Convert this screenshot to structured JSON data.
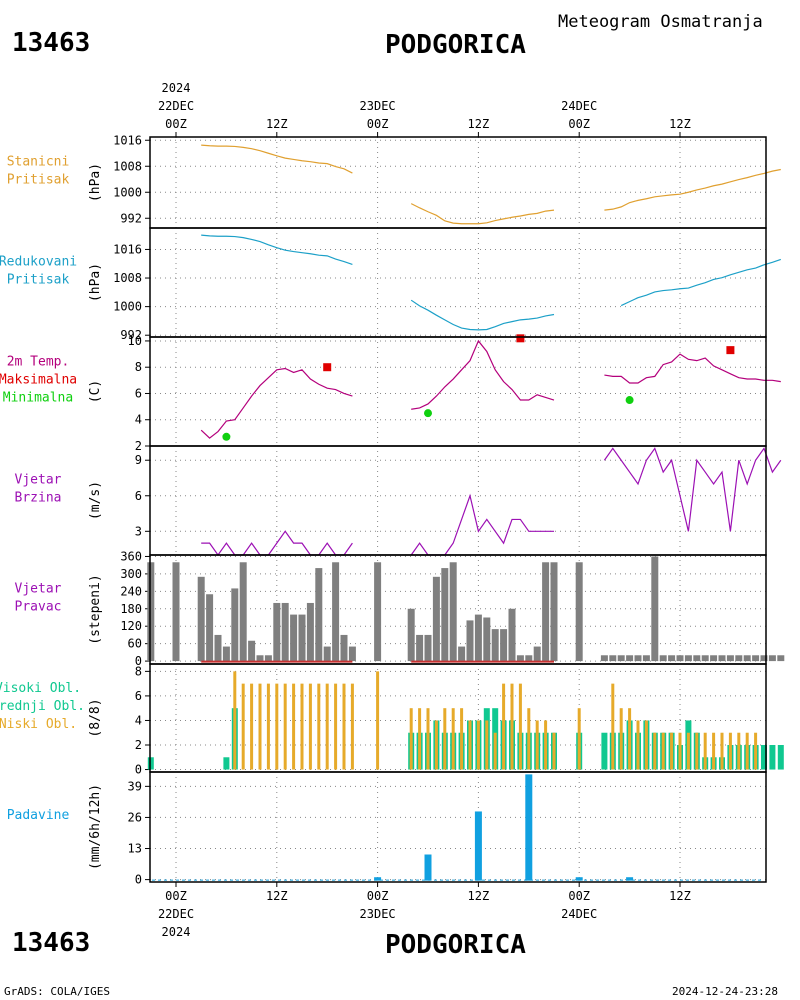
{
  "header": {
    "station_id": "13463",
    "station_name": "PODGORICA",
    "subtitle": "Meteogram Osmatranja",
    "footer_left": "GrADS: COLA/IGES",
    "footer_right": "2024-12-24-23:28"
  },
  "time_axis": {
    "hours_total": 60,
    "top_year": "2024",
    "ticks": [
      {
        "h": 0,
        "label": "00Z",
        "date": "22DEC"
      },
      {
        "h": 12,
        "label": "12Z",
        "date": ""
      },
      {
        "h": 24,
        "label": "00Z",
        "date": "23DEC"
      },
      {
        "h": 36,
        "label": "12Z",
        "date": ""
      },
      {
        "h": 48,
        "label": "00Z",
        "date": "24DEC"
      },
      {
        "h": 60,
        "label": "12Z",
        "date": ""
      }
    ],
    "bottom_year": "2024"
  },
  "colors": {
    "station_pressure": "#e0a030",
    "reduced_pressure": "#1ca0c8",
    "temperature": "#b4007c",
    "max_marker": "#e00000",
    "min_marker": "#10d010",
    "wind": "#9c10b4",
    "direction_bar": "#7f7f7f",
    "direction_dash": "#c83232",
    "high_cloud": "#10c890",
    "low_cloud": "#e6aa2a",
    "precip": "#10a0e0",
    "grid": "#888888"
  },
  "chart_data": [
    {
      "panel": "station_pressure",
      "type": "line",
      "labels": [
        "Stanicni",
        "Pritisak"
      ],
      "ylabel": "(hPa)",
      "yticks": [
        992,
        1000,
        1008,
        1016
      ],
      "ylim": [
        989,
        1017
      ],
      "series": [
        {
          "x": [
            3,
            4,
            5,
            6,
            7,
            8,
            9,
            10,
            11,
            12,
            13,
            14,
            15,
            16,
            17,
            18,
            19,
            20,
            21
          ],
          "y": [
            1014.5,
            1014.3,
            1014.2,
            1014.2,
            1014.1,
            1013.8,
            1013.4,
            1012.8,
            1012.0,
            1011.2,
            1010.5,
            1010.1,
            1009.7,
            1009.4,
            1009.0,
            1008.8,
            1007.9,
            1007.2,
            1005.9
          ]
        },
        {
          "x": [
            28,
            29,
            30,
            31,
            32,
            33,
            34,
            35,
            36,
            37,
            38,
            39,
            40,
            41,
            42,
            43,
            44,
            45
          ],
          "y": [
            996.5,
            995.2,
            994.0,
            992.9,
            991.2,
            990.5,
            990.3,
            990.3,
            990.3,
            990.6,
            991.3,
            991.8,
            992.3,
            992.7,
            993.2,
            993.5,
            994.2,
            994.5
          ]
        },
        {
          "x": [
            51,
            52,
            53,
            54,
            55,
            56,
            57,
            58,
            59,
            60,
            61,
            62,
            63,
            64,
            65,
            66,
            67,
            68,
            69,
            70,
            71,
            72
          ],
          "y": [
            994.5,
            994.8,
            995.5,
            996.8,
            997.5,
            998.0,
            998.6,
            998.9,
            999.2,
            999.4,
            1000.0,
            1000.7,
            1001.3,
            1002.0,
            1002.5,
            1003.2,
            1003.9,
            1004.5,
            1005.2,
            1005.8,
            1006.5,
            1007.0
          ]
        }
      ]
    },
    {
      "panel": "reduced_pressure",
      "type": "line",
      "labels": [
        "Redukovani",
        "Pritisak"
      ],
      "ylabel": "(hPa)",
      "yticks": [
        992,
        1000,
        1008,
        1016
      ],
      "ylim": [
        991.5,
        1022
      ],
      "series": [
        {
          "x": [
            3,
            4,
            5,
            6,
            7,
            8,
            9,
            10,
            11,
            12,
            13,
            14,
            15,
            16,
            17,
            18,
            19,
            20,
            21
          ],
          "y": [
            1020.0,
            1019.8,
            1019.7,
            1019.7,
            1019.6,
            1019.3,
            1018.8,
            1018.2,
            1017.3,
            1016.5,
            1015.8,
            1015.4,
            1015.1,
            1014.8,
            1014.4,
            1014.2,
            1013.3,
            1012.6,
            1011.8
          ]
        },
        {
          "x": [
            28,
            29,
            30,
            31,
            32,
            33,
            34,
            35,
            36,
            37,
            38,
            39,
            40,
            41,
            42,
            43,
            44,
            45
          ],
          "y": [
            1001.8,
            1000.2,
            999.0,
            997.6,
            996.3,
            995.0,
            994.0,
            993.6,
            993.5,
            993.6,
            994.4,
            995.3,
            995.8,
            996.3,
            996.5,
            996.8,
            997.4,
            997.8
          ]
        },
        {
          "x": [
            53,
            54,
            55,
            56,
            57,
            58,
            59,
            60,
            61,
            62,
            63,
            64,
            65,
            66,
            67,
            68,
            69,
            70,
            71,
            72
          ],
          "y": [
            1000.3,
            1001.4,
            1002.5,
            1003.2,
            1004.1,
            1004.5,
            1004.7,
            1005.0,
            1005.2,
            1006.0,
            1006.7,
            1007.6,
            1008.1,
            1008.9,
            1009.6,
            1010.3,
            1010.8,
            1011.7,
            1012.4,
            1013.2
          ]
        }
      ]
    },
    {
      "panel": "temperature",
      "type": "line",
      "labels": [
        "2m Temp.",
        "Maksimalna",
        "Minimalna"
      ],
      "ylabel": "(C)",
      "yticks": [
        2,
        4,
        6,
        8,
        10
      ],
      "ylim": [
        2,
        10.3
      ],
      "series": [
        {
          "x": [
            3,
            4,
            5,
            6,
            7,
            8,
            9,
            10,
            11,
            12,
            13,
            14,
            15,
            16,
            17,
            18,
            19,
            20,
            21
          ],
          "y": [
            3.2,
            2.6,
            3.1,
            3.9,
            4.0,
            4.9,
            5.8,
            6.6,
            7.2,
            7.8,
            7.9,
            7.6,
            7.8,
            7.1,
            6.7,
            6.4,
            6.3,
            6.0,
            5.8
          ]
        },
        {
          "x": [
            28,
            29,
            30,
            31,
            32,
            33,
            34,
            35,
            36,
            37,
            38,
            39,
            40,
            41,
            42,
            43,
            44,
            45
          ],
          "y": [
            4.8,
            4.9,
            5.2,
            5.8,
            6.5,
            7.1,
            7.8,
            8.5,
            10.0,
            9.2,
            7.8,
            6.9,
            6.3,
            5.5,
            5.5,
            5.9,
            5.7,
            5.5
          ]
        },
        {
          "x": [
            51,
            52,
            53,
            54,
            55,
            56,
            57,
            58,
            59,
            60,
            61,
            62,
            63,
            64,
            65,
            66,
            67,
            68,
            69,
            70,
            71,
            72
          ],
          "y": [
            7.4,
            7.3,
            7.3,
            6.8,
            6.8,
            7.2,
            7.3,
            8.2,
            8.4,
            9.0,
            8.6,
            8.5,
            8.7,
            8.1,
            7.8,
            7.5,
            7.2,
            7.1,
            7.1,
            7.0,
            7.0,
            6.9
          ]
        }
      ],
      "maxima": [
        {
          "x": 18,
          "y": 8.0
        },
        {
          "x": 41,
          "y": 10.2
        },
        {
          "x": 66,
          "y": 9.3
        }
      ],
      "minima": [
        {
          "x": 6,
          "y": 2.7
        },
        {
          "x": 30,
          "y": 4.5
        },
        {
          "x": 54,
          "y": 5.5
        }
      ]
    },
    {
      "panel": "wind_speed",
      "type": "line",
      "labels": [
        "Vjetar",
        "Brzina"
      ],
      "ylabel": "(m/s)",
      "yticks": [
        3,
        6,
        9
      ],
      "ylim": [
        1,
        10.2
      ],
      "series": [
        {
          "x": [
            3,
            4,
            5,
            6,
            7,
            8,
            9,
            10,
            11,
            12,
            13,
            14,
            15,
            16,
            17,
            18,
            19,
            20,
            21
          ],
          "y": [
            2,
            2,
            1,
            2,
            1,
            1,
            2,
            1,
            1,
            2,
            3,
            2,
            2,
            1,
            1,
            2,
            1,
            1,
            2
          ]
        },
        {
          "x": [
            28,
            29,
            30,
            31,
            32,
            33,
            34,
            35,
            36,
            37,
            38,
            39,
            40,
            41,
            42,
            43,
            44,
            45
          ],
          "y": [
            1,
            2,
            1,
            1,
            1,
            2,
            4,
            6,
            3,
            4,
            3,
            2,
            4,
            4,
            3,
            3,
            3,
            3
          ]
        },
        {
          "x": [
            51,
            52,
            53,
            54,
            55,
            56,
            57,
            58,
            59,
            60,
            61,
            62,
            63,
            64,
            65,
            66,
            67,
            68,
            69,
            70,
            71,
            72
          ],
          "y": [
            9,
            10,
            9,
            8,
            7,
            9,
            10,
            8,
            9,
            6,
            3,
            9,
            8,
            7,
            8,
            3,
            9,
            7,
            9,
            10,
            8,
            9
          ]
        }
      ]
    },
    {
      "panel": "wind_direction",
      "type": "bar",
      "labels": [
        "Vjetar",
        "Pravac"
      ],
      "ylabel": "(stepeni)",
      "yticks": [
        0,
        60,
        120,
        180,
        240,
        300,
        360
      ],
      "ylim": [
        -10,
        365
      ],
      "calm_dash_ranges": [
        [
          3,
          21
        ],
        [
          28,
          45
        ]
      ],
      "series": [
        {
          "x": [
            -3,
            0,
            3,
            4,
            5,
            6,
            7,
            8,
            9,
            10,
            11,
            12,
            13,
            14,
            15,
            16,
            17,
            18,
            19,
            20,
            21,
            24,
            28,
            29,
            30,
            31,
            32,
            33,
            34,
            35,
            36,
            37,
            38,
            39,
            40,
            41,
            42,
            43,
            44,
            45,
            48,
            51,
            52,
            53,
            54,
            55,
            56,
            57,
            58,
            59,
            60,
            61,
            62,
            63,
            64,
            65,
            66,
            67,
            68,
            69,
            70,
            71,
            72
          ],
          "y": [
            340,
            340,
            290,
            230,
            90,
            50,
            250,
            340,
            70,
            20,
            20,
            200,
            200,
            160,
            160,
            200,
            320,
            50,
            340,
            90,
            50,
            340,
            180,
            90,
            90,
            290,
            320,
            340,
            50,
            140,
            160,
            150,
            110,
            110,
            180,
            20,
            20,
            50,
            340,
            340,
            340,
            20,
            20,
            20,
            20,
            20,
            20,
            360,
            20,
            20,
            20,
            20,
            20,
            20,
            20,
            20,
            20,
            20,
            20,
            20,
            20,
            20,
            20
          ]
        }
      ]
    },
    {
      "panel": "clouds",
      "type": "bar",
      "labels": [
        "Visoki Obl.",
        "Srednji Obl.",
        "Niski Obl."
      ],
      "ylabel": "(8/8)",
      "yticks": [
        0,
        2,
        4,
        6,
        8
      ],
      "ylim": [
        -0.2,
        8.6
      ],
      "series": [
        {
          "name": "Visoki Obl.",
          "x": [
            -3,
            6,
            7,
            28,
            29,
            30,
            31,
            32,
            33,
            34,
            35,
            36,
            37,
            38,
            39,
            40,
            41,
            42,
            43,
            44,
            45,
            48,
            51,
            52,
            53,
            54,
            55,
            56,
            57,
            58,
            59,
            60,
            61,
            62,
            63,
            64,
            65,
            66,
            67,
            68,
            69,
            70,
            71,
            72
          ],
          "y": [
            1,
            1,
            5,
            3,
            3,
            3,
            4,
            3,
            3,
            3,
            4,
            4,
            5,
            5,
            4,
            4,
            3,
            3,
            3,
            3,
            3,
            3,
            3,
            3,
            3,
            4,
            3,
            4,
            3,
            3,
            3,
            2,
            4,
            3,
            1,
            1,
            1,
            2,
            2,
            2,
            2,
            2,
            2,
            2
          ]
        },
        {
          "name": "Niski Obl.",
          "x": [
            3,
            4,
            5,
            6,
            7,
            8,
            9,
            10,
            11,
            12,
            13,
            14,
            15,
            16,
            17,
            18,
            19,
            20,
            21,
            24,
            28,
            29,
            30,
            31,
            32,
            33,
            34,
            35,
            36,
            37,
            38,
            39,
            40,
            41,
            42,
            43,
            44,
            45,
            48,
            51,
            52,
            53,
            54,
            55,
            56,
            57,
            58,
            59,
            60,
            61,
            62,
            63,
            64,
            65,
            66,
            67,
            68,
            69,
            70,
            71,
            72
          ],
          "y": [
            0,
            0,
            0,
            0,
            8,
            7,
            7,
            7,
            7,
            7,
            7,
            7,
            7,
            7,
            7,
            7,
            7,
            7,
            7,
            8,
            5,
            5,
            5,
            4,
            5,
            5,
            5,
            4,
            4,
            4,
            3,
            7,
            7,
            7,
            5,
            4,
            4,
            3,
            5,
            0,
            7,
            5,
            5,
            4,
            4,
            3,
            3,
            3,
            3,
            3,
            3,
            3,
            3,
            3,
            3,
            3,
            3,
            3,
            0,
            0,
            0
          ]
        }
      ]
    },
    {
      "panel": "precipitation",
      "type": "bar",
      "labels": [
        "Padavine"
      ],
      "ylabel": "(mm/6h/12h)",
      "yticks": [
        0,
        13,
        26,
        39
      ],
      "ylim": [
        -1,
        45
      ],
      "series": [
        {
          "x": [
            24,
            30,
            36,
            42,
            48,
            54
          ],
          "y": [
            1,
            10.5,
            28.5,
            44,
            1,
            1
          ]
        }
      ]
    }
  ]
}
